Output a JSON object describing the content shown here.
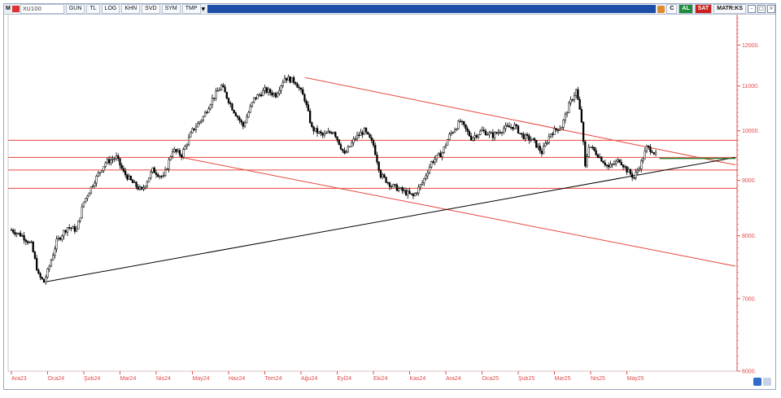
{
  "toolbar": {
    "m_label": "M",
    "symbol": "XU100",
    "buttons": [
      "GUN",
      "TL",
      "LOG",
      "KHN",
      "SVD",
      "SYM",
      "TMP"
    ],
    "c_label": "C",
    "al_label": "AL",
    "sat_label": "SAT",
    "matr_label": "MATR:KS"
  },
  "colors": {
    "price": "#000000",
    "resistance": "#e8463c",
    "support_trend": "#000000",
    "axis_text": "#e14b4b",
    "marker": "#2e7d32"
  },
  "chart_data": {
    "type": "candlestick",
    "y_scale": "log",
    "ylim": [
      6000,
      12800
    ],
    "yticks": [
      12000,
      11000,
      10000,
      9000,
      8000,
      7000,
      6000
    ],
    "ytick_labels": [
      "12000.",
      "11000.",
      "10000.",
      "9000.",
      "8000.",
      "7000.",
      "6000."
    ],
    "xlabels": [
      "Ara23",
      "Oca24",
      "Şub24",
      "Mar24",
      "Nis24",
      "May24",
      "Haz24",
      "Tem24",
      "Ağu24",
      "Eyl24",
      "Eki24",
      "Kas24",
      "Ara24",
      "Oca25",
      "Şub25",
      "Mar25",
      "Nis25",
      "May25"
    ],
    "xlabel_month_index": [
      0,
      1,
      2,
      3,
      4,
      5,
      6,
      7,
      8,
      9,
      10,
      11,
      12,
      13,
      14,
      15,
      16,
      17
    ],
    "price_path": [
      [
        0.0,
        8100
      ],
      [
        0.3,
        8000
      ],
      [
        0.55,
        7850
      ],
      [
        0.75,
        7350
      ],
      [
        0.9,
        7250
      ],
      [
        1.05,
        7500
      ],
      [
        1.25,
        7900
      ],
      [
        1.55,
        8150
      ],
      [
        1.8,
        8100
      ],
      [
        2.0,
        8600
      ],
      [
        2.3,
        9000
      ],
      [
        2.6,
        9350
      ],
      [
        2.9,
        9450
      ],
      [
        3.1,
        9150
      ],
      [
        3.35,
        8950
      ],
      [
        3.6,
        8800
      ],
      [
        3.9,
        9200
      ],
      [
        4.2,
        9050
      ],
      [
        4.45,
        9600
      ],
      [
        4.7,
        9500
      ],
      [
        5.0,
        10000
      ],
      [
        5.3,
        10300
      ],
      [
        5.55,
        10700
      ],
      [
        5.8,
        11000
      ],
      [
        6.1,
        10500
      ],
      [
        6.4,
        10100
      ],
      [
        6.7,
        10700
      ],
      [
        7.0,
        10900
      ],
      [
        7.3,
        10800
      ],
      [
        7.55,
        11200
      ],
      [
        7.85,
        11100
      ],
      [
        8.1,
        10700
      ],
      [
        8.3,
        10050
      ],
      [
        8.6,
        9900
      ],
      [
        8.9,
        10000
      ],
      [
        9.2,
        9500
      ],
      [
        9.5,
        9850
      ],
      [
        9.75,
        10000
      ],
      [
        10.0,
        9700
      ],
      [
        10.2,
        9100
      ],
      [
        10.5,
        8900
      ],
      [
        10.8,
        8800
      ],
      [
        11.1,
        8700
      ],
      [
        11.35,
        8950
      ],
      [
        11.6,
        9350
      ],
      [
        11.9,
        9550
      ],
      [
        12.1,
        9900
      ],
      [
        12.4,
        10200
      ],
      [
        12.7,
        9850
      ],
      [
        13.0,
        10000
      ],
      [
        13.3,
        9900
      ],
      [
        13.6,
        10050
      ],
      [
        13.9,
        10100
      ],
      [
        14.1,
        9900
      ],
      [
        14.4,
        9800
      ],
      [
        14.65,
        9550
      ],
      [
        14.9,
        9950
      ],
      [
        15.2,
        10100
      ],
      [
        15.4,
        10550
      ],
      [
        15.6,
        10900
      ],
      [
        15.75,
        10200
      ],
      [
        15.85,
        9250
      ],
      [
        15.95,
        9700
      ],
      [
        16.2,
        9500
      ],
      [
        16.5,
        9250
      ],
      [
        16.8,
        9400
      ],
      [
        17.0,
        9200
      ],
      [
        17.2,
        9050
      ],
      [
        17.4,
        9350
      ],
      [
        17.55,
        9650
      ],
      [
        17.7,
        9600
      ],
      [
        17.85,
        9450
      ]
    ],
    "horizontal_levels": [
      9800,
      9450,
      9200,
      8850
    ],
    "trendlines": [
      {
        "color": "resistance",
        "from": [
          8.1,
          11200
        ],
        "to": [
          20.0,
          9300
        ]
      },
      {
        "color": "resistance",
        "from": [
          4.7,
          9450
        ],
        "to": [
          20.0,
          7500
        ]
      },
      {
        "color": "support_trend",
        "from": [
          0.9,
          7250
        ],
        "to": [
          20.0,
          9450
        ]
      }
    ],
    "marker_segment": {
      "from": [
        17.9,
        9430
      ],
      "to": [
        20.0,
        9430
      ]
    }
  }
}
